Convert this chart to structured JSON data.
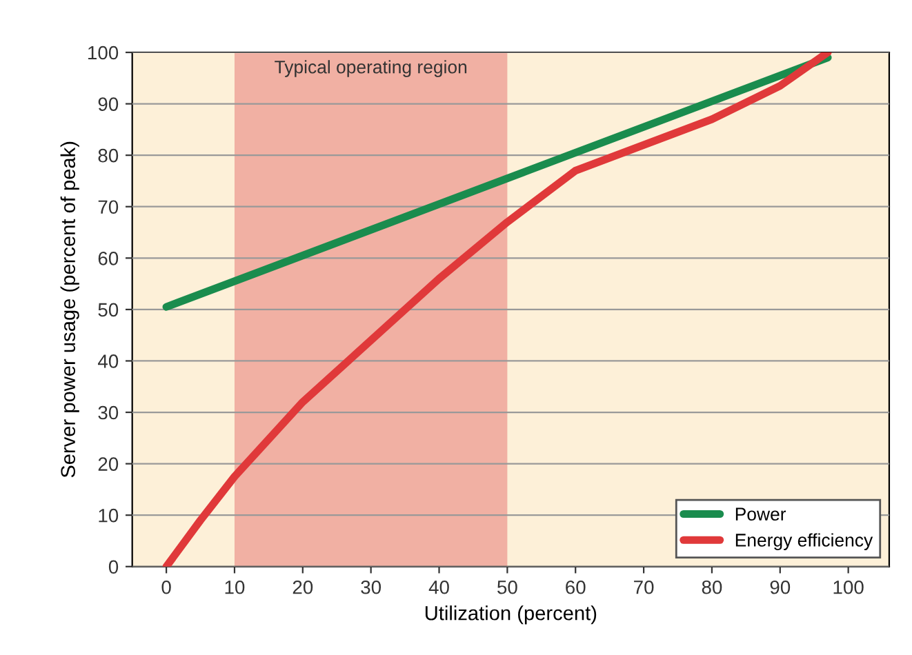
{
  "chart_data": {
    "type": "line",
    "xlabel": "Utilization (percent)",
    "ylabel": "Server power usage (percent of peak)",
    "series": [
      {
        "name": "Power",
        "color": "#1a8c4e",
        "x": [
          0,
          97
        ],
        "values": [
          50.5,
          99
        ]
      },
      {
        "name": "Energy efficiency",
        "color": "#e0393a",
        "x": [
          0,
          5,
          10,
          20,
          30,
          40,
          50,
          60,
          70,
          80,
          90,
          97
        ],
        "values": [
          0,
          9,
          17.5,
          32,
          44,
          56,
          67,
          77,
          82,
          87,
          93.5,
          100
        ]
      }
    ],
    "xlim": [
      -5,
      106
    ],
    "ylim": [
      0,
      100
    ],
    "xticks": [
      0,
      10,
      20,
      30,
      40,
      50,
      60,
      70,
      80,
      90,
      100
    ],
    "yticks": [
      0,
      10,
      20,
      30,
      40,
      50,
      60,
      70,
      80,
      90,
      100
    ],
    "bands": [
      {
        "axis": "x",
        "from": 10,
        "to": 50,
        "label": "Typical operating region",
        "color": "#eea59a"
      }
    ],
    "grid": "y",
    "legend": "bottom right",
    "marker": "none",
    "line_style": "solid"
  }
}
